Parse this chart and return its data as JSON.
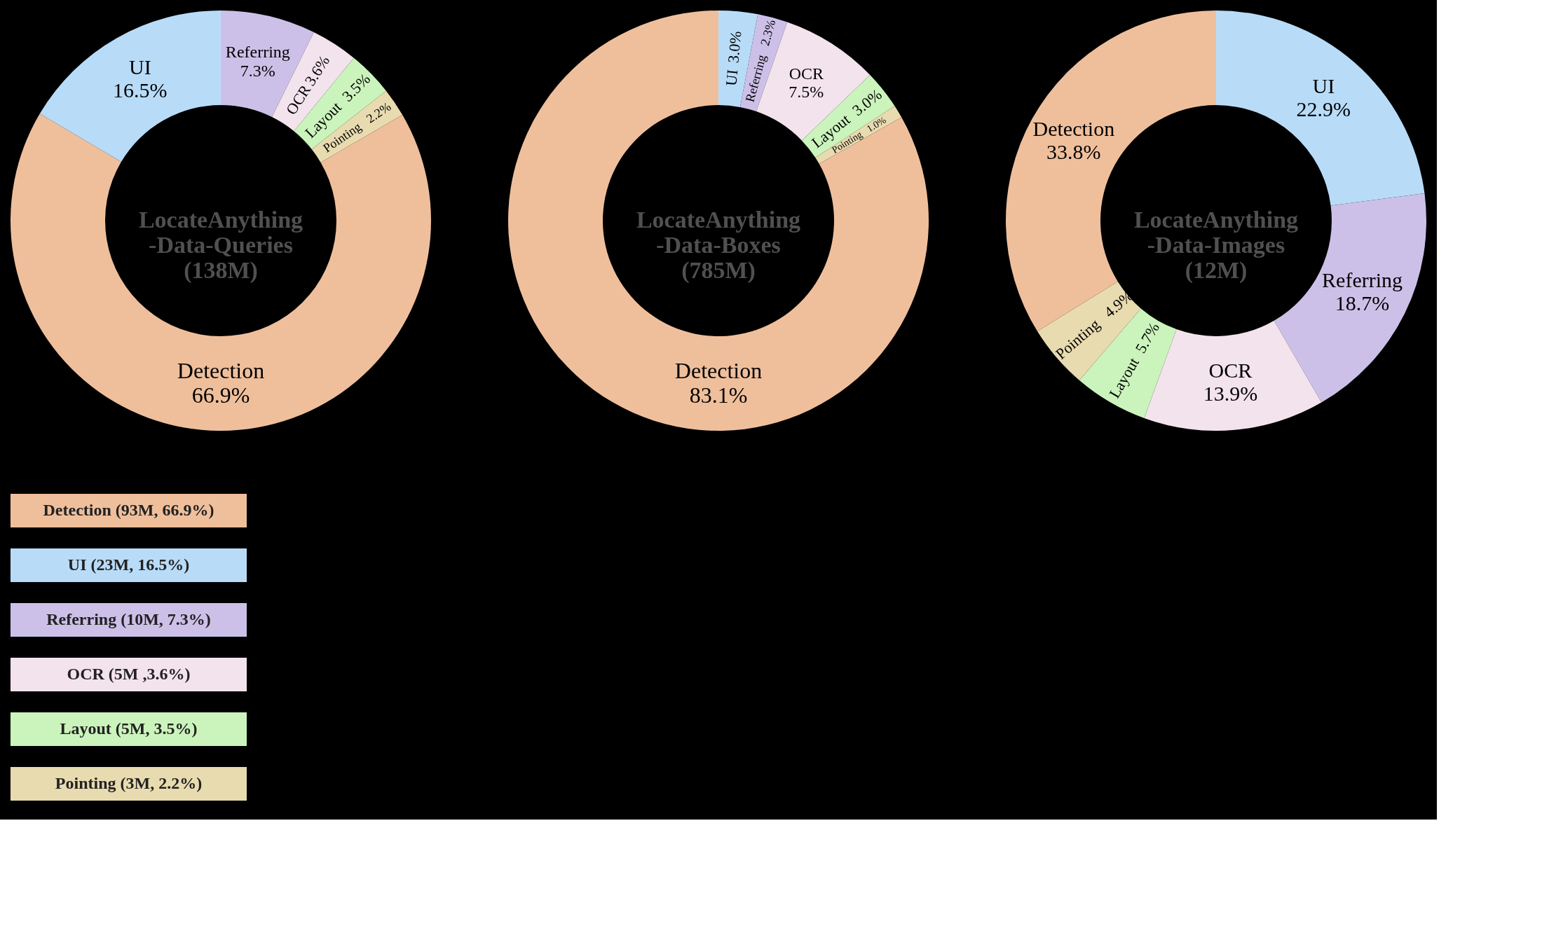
{
  "chart_data": [
    {
      "type": "donut",
      "title": "LocateAnything\n-Data-Queries\n(138M)",
      "categories": [
        "Referring",
        "OCR",
        "Layout",
        "Pointing",
        "Detection",
        "UI"
      ],
      "values": [
        7.3,
        3.6,
        3.5,
        2.2,
        66.9,
        16.5
      ],
      "value_labels": [
        "7.3%",
        "3.6%",
        "3.5%",
        "2.2%",
        "66.9%",
        "16.5%"
      ],
      "colors": [
        "#cdc0e8",
        "#f3e3ec",
        "#cbf4bc",
        "#e8dbb0",
        "#efbf9c",
        "#b8dcf8"
      ]
    },
    {
      "type": "donut",
      "title": "LocateAnything\n-Data-Boxes\n(785M)",
      "categories": [
        "UI",
        "Referring",
        "OCR",
        "Layout",
        "Pointing",
        "Detection"
      ],
      "values": [
        3.0,
        2.3,
        7.5,
        3.0,
        1.0,
        83.1
      ],
      "value_labels": [
        "3.0%",
        "2.3%",
        "7.5%",
        "3.0%",
        "1.0%",
        "83.1%"
      ],
      "colors": [
        "#b8dcf8",
        "#cdc0e8",
        "#f3e3ec",
        "#cbf4bc",
        "#e8dbb0",
        "#efbf9c"
      ]
    },
    {
      "type": "donut",
      "title": "LocateAnything\n-Data-Images\n(12M)",
      "categories": [
        "UI",
        "Referring",
        "OCR",
        "Layout",
        "Pointing",
        "Detection"
      ],
      "values": [
        22.9,
        18.7,
        13.9,
        5.7,
        4.9,
        33.8
      ],
      "value_labels": [
        "22.9%",
        "18.7%",
        "13.9%",
        "5.7%",
        "4.9%",
        "33.8%"
      ],
      "colors": [
        "#b8dcf8",
        "#cdc0e8",
        "#f3e3ec",
        "#cbf4bc",
        "#e8dbb0",
        "#efbf9c"
      ]
    },
    {
      "type": "other",
      "annotations": [
        "Detection (93M, 66.9%)",
        "UI (23M, 16.5%)",
        "Referring (10M, 7.3%)",
        "OCR (5M ,3.6%)",
        "Layout (5M, 3.5%)",
        "Pointing (3M, 2.2%)"
      ],
      "colors": [
        "#efbf9c",
        "#b8dcf8",
        "#cdc0e8",
        "#f3e3ec",
        "#cbf4bc",
        "#e8dbb0"
      ]
    }
  ]
}
